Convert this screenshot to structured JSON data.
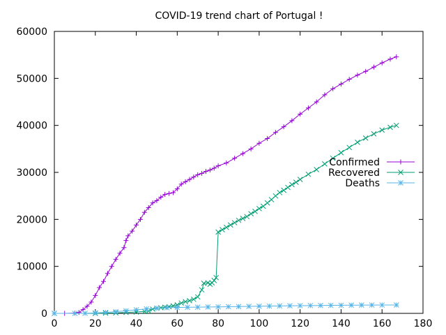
{
  "chart_data": {
    "type": "line",
    "title": "COVID-19 trend chart of Portugal !",
    "xlabel": "",
    "ylabel": "",
    "xlim": [
      0,
      180
    ],
    "ylim": [
      0,
      60000
    ],
    "xticks": [
      0,
      20,
      40,
      60,
      80,
      100,
      120,
      140,
      160,
      180
    ],
    "xtick_labels": [
      "0",
      "20",
      "40",
      "60",
      "80",
      "100",
      "120",
      "140",
      "160",
      "180"
    ],
    "yticks": [
      0,
      10000,
      20000,
      30000,
      40000,
      50000,
      60000
    ],
    "ytick_labels": [
      "0",
      "10000",
      "20000",
      "30000",
      "40000",
      "50000",
      "60000"
    ],
    "grid": false,
    "legend_position": "right",
    "series": [
      {
        "name": "Confirmed",
        "color": "#9400d3",
        "marker": "plus",
        "points": [
          [
            0,
            0
          ],
          [
            5,
            0
          ],
          [
            10,
            50
          ],
          [
            12,
            200
          ],
          [
            14,
            800
          ],
          [
            16,
            1500
          ],
          [
            18,
            2400
          ],
          [
            20,
            3800
          ],
          [
            22,
            5500
          ],
          [
            24,
            6800
          ],
          [
            26,
            8500
          ],
          [
            28,
            10000
          ],
          [
            30,
            11500
          ],
          [
            32,
            12800
          ],
          [
            34,
            14000
          ],
          [
            35,
            15500
          ],
          [
            36,
            16500
          ],
          [
            38,
            17500
          ],
          [
            40,
            18800
          ],
          [
            42,
            20000
          ],
          [
            44,
            21500
          ],
          [
            46,
            22500
          ],
          [
            48,
            23500
          ],
          [
            50,
            24000
          ],
          [
            52,
            24700
          ],
          [
            54,
            25300
          ],
          [
            56,
            25500
          ],
          [
            58,
            25700
          ],
          [
            60,
            26500
          ],
          [
            62,
            27500
          ],
          [
            64,
            28000
          ],
          [
            66,
            28500
          ],
          [
            68,
            29000
          ],
          [
            70,
            29500
          ],
          [
            72,
            29800
          ],
          [
            74,
            30200
          ],
          [
            76,
            30500
          ],
          [
            78,
            30900
          ],
          [
            80,
            31400
          ],
          [
            84,
            32000
          ],
          [
            88,
            33000
          ],
          [
            92,
            34000
          ],
          [
            96,
            35000
          ],
          [
            100,
            36200
          ],
          [
            104,
            37200
          ],
          [
            108,
            38500
          ],
          [
            112,
            39700
          ],
          [
            116,
            41000
          ],
          [
            120,
            42400
          ],
          [
            124,
            43700
          ],
          [
            128,
            45000
          ],
          [
            132,
            46500
          ],
          [
            136,
            47800
          ],
          [
            140,
            48800
          ],
          [
            144,
            49800
          ],
          [
            148,
            50700
          ],
          [
            152,
            51500
          ],
          [
            156,
            52400
          ],
          [
            160,
            53300
          ],
          [
            164,
            54100
          ],
          [
            167,
            54600
          ]
        ]
      },
      {
        "name": "Recovered",
        "color": "#009e73",
        "marker": "cross",
        "points": [
          [
            0,
            0
          ],
          [
            20,
            0
          ],
          [
            25,
            50
          ],
          [
            30,
            100
          ],
          [
            35,
            200
          ],
          [
            40,
            300
          ],
          [
            44,
            400
          ],
          [
            46,
            500
          ],
          [
            48,
            900
          ],
          [
            50,
            1100
          ],
          [
            52,
            1200
          ],
          [
            54,
            1300
          ],
          [
            56,
            1400
          ],
          [
            58,
            1600
          ],
          [
            60,
            1800
          ],
          [
            62,
            2200
          ],
          [
            64,
            2500
          ],
          [
            66,
            2700
          ],
          [
            68,
            3000
          ],
          [
            70,
            3500
          ],
          [
            72,
            5000
          ],
          [
            73,
            6400
          ],
          [
            75,
            6500
          ],
          [
            76,
            6200
          ],
          [
            77,
            6500
          ],
          [
            78,
            7000
          ],
          [
            79,
            7600
          ],
          [
            80,
            17300
          ],
          [
            82,
            17800
          ],
          [
            84,
            18300
          ],
          [
            86,
            18800
          ],
          [
            88,
            19300
          ],
          [
            90,
            19800
          ],
          [
            92,
            20200
          ],
          [
            94,
            20600
          ],
          [
            96,
            21200
          ],
          [
            98,
            21700
          ],
          [
            100,
            22300
          ],
          [
            102,
            22800
          ],
          [
            104,
            23500
          ],
          [
            106,
            24200
          ],
          [
            108,
            25000
          ],
          [
            110,
            25700
          ],
          [
            112,
            26200
          ],
          [
            114,
            26800
          ],
          [
            116,
            27400
          ],
          [
            118,
            27900
          ],
          [
            120,
            28500
          ],
          [
            124,
            29600
          ],
          [
            128,
            30600
          ],
          [
            132,
            31800
          ],
          [
            136,
            33000
          ],
          [
            140,
            34200
          ],
          [
            144,
            35300
          ],
          [
            148,
            36400
          ],
          [
            152,
            37300
          ],
          [
            156,
            38200
          ],
          [
            160,
            39000
          ],
          [
            164,
            39600
          ],
          [
            167,
            40000
          ]
        ]
      },
      {
        "name": "Deaths",
        "color": "#56b4e9",
        "marker": "star",
        "points": [
          [
            0,
            0
          ],
          [
            10,
            0
          ],
          [
            15,
            20
          ],
          [
            20,
            100
          ],
          [
            25,
            200
          ],
          [
            30,
            350
          ],
          [
            35,
            550
          ],
          [
            40,
            750
          ],
          [
            45,
            950
          ],
          [
            50,
            1100
          ],
          [
            55,
            1200
          ],
          [
            60,
            1250
          ],
          [
            65,
            1300
          ],
          [
            70,
            1320
          ],
          [
            75,
            1350
          ],
          [
            80,
            1380
          ],
          [
            85,
            1420
          ],
          [
            90,
            1450
          ],
          [
            95,
            1490
          ],
          [
            100,
            1520
          ],
          [
            105,
            1550
          ],
          [
            110,
            1580
          ],
          [
            115,
            1610
          ],
          [
            120,
            1640
          ],
          [
            125,
            1660
          ],
          [
            130,
            1680
          ],
          [
            135,
            1700
          ],
          [
            140,
            1720
          ],
          [
            145,
            1750
          ],
          [
            150,
            1760
          ],
          [
            155,
            1770
          ],
          [
            160,
            1775
          ],
          [
            167,
            1780
          ]
        ]
      }
    ]
  }
}
